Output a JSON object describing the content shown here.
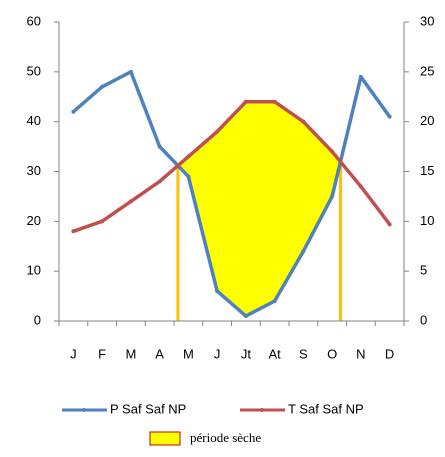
{
  "chart_data": {
    "type": "line",
    "categories": [
      "J",
      "F",
      "M",
      "A",
      "M",
      "J",
      "Jt",
      "At",
      "S",
      "O",
      "N",
      "D"
    ],
    "series": [
      {
        "name": "P Saf Saf NP",
        "color": "#4f81bd",
        "values": [
          42,
          47,
          50,
          35,
          29,
          6,
          1,
          4,
          14,
          25,
          49,
          41
        ]
      },
      {
        "name": "T Saf Saf NP",
        "color": "#c0504d",
        "axis": "y2",
        "values": [
          9,
          10,
          12,
          14,
          16.5,
          19,
          22,
          22,
          20,
          17,
          13.5,
          9.7
        ]
      }
    ],
    "ylim": [
      0,
      60
    ],
    "yticks": [
      0,
      10,
      20,
      30,
      40,
      50,
      60
    ],
    "y2lim": [
      0,
      30
    ],
    "y2ticks": [
      0,
      5,
      10,
      15,
      20,
      25,
      30
    ],
    "dry_period_label": "période sèche",
    "dry_period_color": "#ffff00",
    "dry_period_line_color": "#ffc000",
    "legend": "bottom"
  }
}
